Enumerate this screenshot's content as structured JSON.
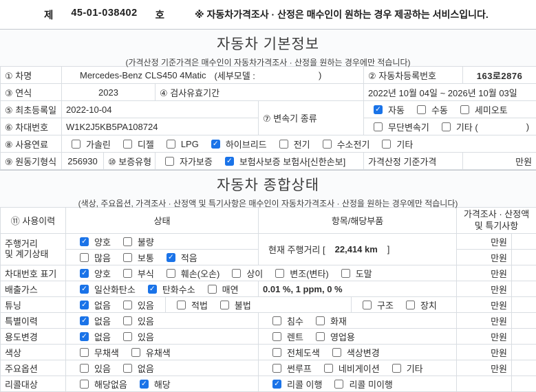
{
  "colors": {
    "accent": "#1a73e8",
    "band_bg": "#fafbfc",
    "border": "#d9dde2"
  },
  "icons": {
    "check": "✓"
  },
  "doc_header": {
    "prefix": "제",
    "number": "45-01-038402",
    "suffix": "호",
    "notice": "※ 자동차가격조사 · 산정은 매수인이 원하는 경우 제공하는 서비스입니다."
  },
  "basic": {
    "title": "자동차 기본정보",
    "subtitle": "(가격산정 기준가격은 매수인이 자동차가격조사 · 산정을 원하는 경우에만 적습니다)",
    "car_name_label": "① 차명",
    "car_name": "Mercedes-Benz CLS450 4Matic",
    "submodel_label": "(세부모델 :",
    "submodel_close": ")",
    "reg_label": "② 자동차등록번호",
    "reg_value": "163로2876",
    "year_label": "③ 연식",
    "year_value": "2023",
    "inspect_label": "④ 검사유효기간",
    "inspect_value": "2022년 10월 04일 ~ 2026년 10월 03일",
    "first_reg_label": "⑤ 최초등록일",
    "first_reg_value": "2022-10-04",
    "vin_label": "⑥ 차대번호",
    "vin_value": "W1K2J5KB5PA108724",
    "trans_label": "⑦ 변속기 종류",
    "trans_row1": [
      {
        "label": "자동",
        "checked": true
      },
      {
        "label": "수동",
        "checked": false
      },
      {
        "label": "세미오토",
        "checked": false
      }
    ],
    "trans_row2": [
      {
        "label": "무단변속기",
        "checked": false
      },
      {
        "label": "기타 (",
        "checked": false
      }
    ],
    "trans_etc_close": ")",
    "fuel_label": "⑧ 사용연료",
    "fuel_options": [
      {
        "label": "가솔린",
        "checked": false
      },
      {
        "label": "디젤",
        "checked": false
      },
      {
        "label": "LPG",
        "checked": false
      },
      {
        "label": "하이브리드",
        "checked": true
      },
      {
        "label": "전기",
        "checked": false
      },
      {
        "label": "수소전기",
        "checked": false
      },
      {
        "label": "기타",
        "checked": false
      }
    ],
    "engine_label": "⑨ 원동기형식",
    "engine_value": "256930",
    "warranty_label": "⑩ 보증유형",
    "warranty_options": [
      {
        "label": "자가보증",
        "checked": false
      },
      {
        "label": "보험사보증 보험사[신한손보]",
        "checked": true
      }
    ],
    "base_price_label": "가격산정 기준가격",
    "price_unit": "만원"
  },
  "condition": {
    "title": "자동차 종합상태",
    "subtitle": "(색상, 주요옵션, 가격조사 · 산정액 및 특기사항은 매수인이 자동차가격조사 · 산정을 원하는 경우에만 적습니다)",
    "header": {
      "usage": "⑪ 사용이력",
      "state": "상태",
      "parts": "항목/해당부품",
      "price_line1": "가격조사 · 산정액",
      "price_line2": "및 특기사항"
    },
    "price_unit": "만원",
    "mileage": {
      "label_line1": "주행거리",
      "label_line2": "및 계기상태",
      "state1": [
        {
          "label": "양호",
          "checked": true
        },
        {
          "label": "불량",
          "checked": false
        }
      ],
      "state2": [
        {
          "label": "많음",
          "checked": false
        },
        {
          "label": "보통",
          "checked": false
        },
        {
          "label": "적음",
          "checked": true
        }
      ],
      "current_label": "현재 주행거리 [",
      "current_value": "22,414 km",
      "current_close": "]"
    },
    "vin_mark": {
      "label": "차대번호 표기",
      "state": [
        {
          "label": "양호",
          "checked": true
        },
        {
          "label": "부식",
          "checked": false
        },
        {
          "label": "훼손(오손)",
          "checked": false
        },
        {
          "label": "상이",
          "checked": false
        },
        {
          "label": "변조(변타)",
          "checked": false
        },
        {
          "label": "도말",
          "checked": false
        }
      ]
    },
    "emission": {
      "label": "배출가스",
      "state": [
        {
          "label": "일산화탄소",
          "checked": true
        },
        {
          "label": "탄화수소",
          "checked": true
        },
        {
          "label": "매연",
          "checked": false
        }
      ],
      "values": "0.01 %,   1  ppm,   0  %"
    },
    "tuning": {
      "label": "튜닝",
      "state1": [
        {
          "label": "없음",
          "checked": true
        },
        {
          "label": "있음",
          "checked": false
        }
      ],
      "state2": [
        {
          "label": "적법",
          "checked": false
        },
        {
          "label": "불법",
          "checked": false
        }
      ],
      "parts": [
        {
          "label": "구조",
          "checked": false
        },
        {
          "label": "장치",
          "checked": false
        }
      ]
    },
    "special": {
      "label": "특별이력",
      "state": [
        {
          "label": "없음",
          "checked": true
        },
        {
          "label": "있음",
          "checked": false
        }
      ],
      "parts": [
        {
          "label": "침수",
          "checked": false
        },
        {
          "label": "화재",
          "checked": false
        }
      ]
    },
    "usage_change": {
      "label": "용도변경",
      "state": [
        {
          "label": "없음",
          "checked": true
        },
        {
          "label": "있음",
          "checked": false
        }
      ],
      "parts": [
        {
          "label": "렌트",
          "checked": false
        },
        {
          "label": "영업용",
          "checked": false
        }
      ]
    },
    "color": {
      "label": "색상",
      "state": [
        {
          "label": "무채색",
          "checked": false
        },
        {
          "label": "유채색",
          "checked": false
        }
      ],
      "parts": [
        {
          "label": "전체도색",
          "checked": false
        },
        {
          "label": "색상변경",
          "checked": false
        }
      ]
    },
    "options": {
      "label": "주요옵션",
      "state": [
        {
          "label": "있음",
          "checked": false
        },
        {
          "label": "없음",
          "checked": false
        }
      ],
      "parts": [
        {
          "label": "썬루프",
          "checked": false
        },
        {
          "label": "네비게이션",
          "checked": false
        },
        {
          "label": "기타",
          "checked": false
        }
      ]
    },
    "recall": {
      "label": "리콜대상",
      "state": [
        {
          "label": "해당없음",
          "checked": false
        },
        {
          "label": "해당",
          "checked": true
        }
      ],
      "parts": [
        {
          "label": "리콜 이행",
          "checked": true
        },
        {
          "label": "리콜 미이행",
          "checked": false
        }
      ]
    }
  }
}
